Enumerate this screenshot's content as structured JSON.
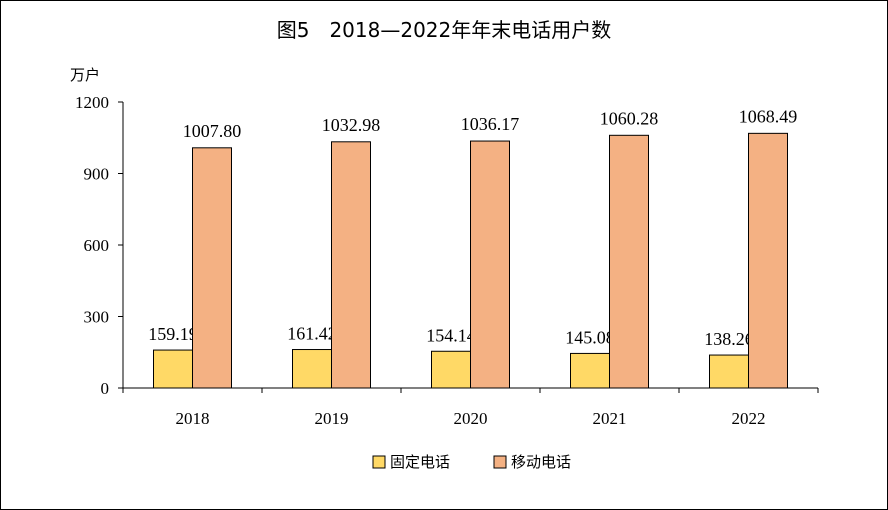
{
  "chart_data": {
    "type": "bar",
    "title": "图5　2018—2022年年末电话用户数",
    "ylabel": "万户",
    "xlabel": "",
    "categories": [
      "2018",
      "2019",
      "2020",
      "2021",
      "2022"
    ],
    "series": [
      {
        "name": "固定电话",
        "values": [
          159.19,
          161.42,
          154.14,
          145.08,
          138.26
        ],
        "labels": [
          "159.19",
          "161.42",
          "154.14",
          "145.08",
          "138.26"
        ],
        "color": "#FFD966"
      },
      {
        "name": "移动电话",
        "values": [
          1007.8,
          1032.98,
          1036.17,
          1060.28,
          1068.49
        ],
        "labels": [
          "1007.80",
          "1032.98",
          "1036.17",
          "1060.28",
          "1068.49"
        ],
        "color": "#F4B183"
      }
    ],
    "ylim": [
      0,
      1200
    ],
    "yticks": [
      "0",
      "300",
      "600",
      "900",
      "1200"
    ],
    "grid": false,
    "legend_position": "bottom"
  }
}
